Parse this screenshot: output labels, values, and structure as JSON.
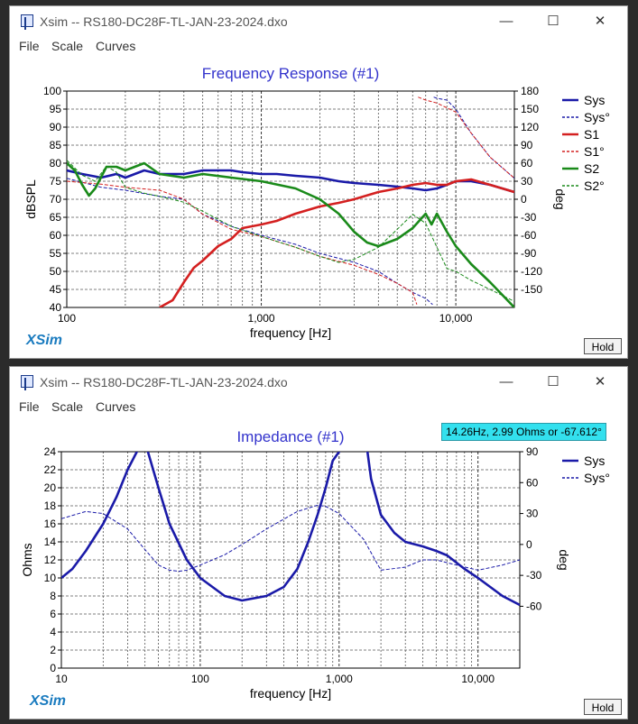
{
  "windows": [
    {
      "title": "Xsim -- RS180-DC28F-TL-JAN-23-2024.dxo",
      "menu": [
        "File",
        "Scale",
        "Curves"
      ],
      "hold": "Hold",
      "logo": "XSim"
    },
    {
      "title": "Xsim -- RS180-DC28F-TL-JAN-23-2024.dxo",
      "menu": [
        "File",
        "Scale",
        "Curves"
      ],
      "hold": "Hold",
      "logo": "XSim",
      "readout": "14.26Hz, 2.99 Ohms or -67.612°"
    }
  ],
  "window_controls": {
    "minimize": "—",
    "maximize": "☐",
    "close": "✕"
  },
  "colors": {
    "blue": "#1a1aa8",
    "red": "#d42020",
    "green": "#1a8a1a",
    "title": "#3333cc"
  },
  "chart_data": [
    {
      "type": "line",
      "title": "Frequency Response (#1)",
      "xlabel": "frequency [Hz]",
      "ylabel": "dBSPL",
      "y2label": "deg",
      "xscale": "log",
      "xlim": [
        100,
        20000
      ],
      "ylim": [
        40,
        100
      ],
      "y2lim": [
        -180,
        180
      ],
      "xticks": [
        {
          "v": 100,
          "l": "100"
        },
        {
          "v": 1000,
          "l": "1,000"
        },
        {
          "v": 10000,
          "l": "10,000"
        }
      ],
      "yticks": [
        40,
        45,
        50,
        55,
        60,
        65,
        70,
        75,
        80,
        85,
        90,
        95,
        100
      ],
      "y2ticks": [
        -150,
        -120,
        -90,
        -60,
        -30,
        0,
        30,
        60,
        90,
        120,
        150,
        180
      ],
      "grid": true,
      "legend": "right",
      "series": [
        {
          "name": "Sys",
          "axis": "left",
          "color": "#1a1aa8",
          "dash": false,
          "width": 2.6,
          "x": [
            100,
            120,
            150,
            180,
            200,
            250,
            300,
            400,
            500,
            600,
            700,
            800,
            1000,
            1200,
            1500,
            2000,
            2500,
            3000,
            4000,
            5000,
            6000,
            7000,
            8000,
            9000,
            10000,
            12000,
            15000,
            20000
          ],
          "y": [
            78,
            77,
            76,
            77,
            76,
            78,
            77,
            77,
            78,
            78,
            78,
            77.5,
            77,
            77,
            76.5,
            76,
            75,
            74.5,
            74,
            73.5,
            73,
            72.5,
            73,
            74,
            75,
            75,
            74,
            72
          ]
        },
        {
          "name": "Sys°",
          "axis": "right",
          "color": "#1a1aa8",
          "dash": true,
          "width": 1,
          "x": [
            100,
            150,
            200,
            300,
            400,
            500,
            700,
            1000,
            1500,
            2000,
            3000,
            4000,
            5000,
            6000,
            7000,
            7600,
            7700,
            8000,
            9000,
            10000,
            12000,
            15000,
            20000
          ],
          "y": [
            35,
            20,
            15,
            5,
            0,
            -25,
            -45,
            -60,
            -75,
            -90,
            -105,
            -120,
            -140,
            -155,
            -165,
            -175,
            170,
            168,
            165,
            150,
            110,
            70,
            35
          ]
        },
        {
          "name": "S1",
          "axis": "left",
          "color": "#d42020",
          "dash": false,
          "width": 2.6,
          "x": [
            300,
            350,
            400,
            450,
            500,
            600,
            700,
            800,
            1000,
            1200,
            1500,
            2000,
            2500,
            3000,
            4000,
            5000,
            6000,
            7000,
            8000,
            9000,
            10000,
            12000,
            15000,
            20000
          ],
          "y": [
            40,
            42,
            47,
            51,
            53,
            57,
            59,
            62,
            63,
            64,
            66,
            68,
            69,
            70,
            72,
            73,
            74,
            74.5,
            74,
            74,
            75,
            75.5,
            74,
            72
          ]
        },
        {
          "name": "S1°",
          "axis": "right",
          "color": "#d42020",
          "dash": true,
          "width": 1,
          "x": [
            100,
            150,
            200,
            300,
            400,
            500,
            700,
            1000,
            1500,
            2000,
            3000,
            4000,
            5000,
            6000,
            6300,
            6400,
            7000,
            8000,
            10000,
            12000,
            15000,
            20000
          ],
          "y": [
            30,
            25,
            20,
            15,
            0,
            -25,
            -50,
            -62,
            -80,
            -95,
            -110,
            -125,
            -140,
            -155,
            -175,
            170,
            165,
            160,
            145,
            110,
            70,
            35
          ]
        },
        {
          "name": "S2",
          "axis": "left",
          "color": "#1a8a1a",
          "dash": false,
          "width": 2.6,
          "x": [
            100,
            110,
            120,
            130,
            140,
            160,
            180,
            200,
            250,
            300,
            400,
            500,
            700,
            1000,
            1500,
            2000,
            2500,
            3000,
            3500,
            4000,
            5000,
            6000,
            7000,
            7500,
            8000,
            9000,
            10000,
            12000,
            15000,
            20000
          ],
          "y": [
            80,
            78,
            74,
            71,
            73,
            79,
            79,
            78,
            80,
            77,
            76,
            77,
            76,
            75,
            73,
            70,
            66,
            61,
            58,
            57,
            59,
            62,
            66,
            63,
            66,
            61,
            57,
            52,
            47,
            40
          ]
        },
        {
          "name": "S2°",
          "axis": "right",
          "color": "#1a8a1a",
          "dash": true,
          "width": 1,
          "x": [
            100,
            120,
            140,
            160,
            180,
            200,
            250,
            300,
            400,
            500,
            700,
            1000,
            1500,
            2000,
            2500,
            3000,
            4000,
            5000,
            6000,
            7000,
            8000,
            9000,
            10000,
            12000,
            15000,
            20000
          ],
          "y": [
            65,
            40,
            30,
            55,
            45,
            20,
            10,
            5,
            -5,
            -20,
            -45,
            -62,
            -80,
            -95,
            -105,
            -100,
            -80,
            -50,
            -25,
            -40,
            -80,
            -115,
            -120,
            -135,
            -150,
            -170
          ]
        }
      ]
    },
    {
      "type": "line",
      "title": "Impedance (#1)",
      "xlabel": "frequency [Hz]",
      "ylabel": "Ohms",
      "y2label": "deg",
      "xscale": "log",
      "xlim": [
        10,
        20000
      ],
      "ylim": [
        0,
        24
      ],
      "y2lim": [
        -120,
        90
      ],
      "xticks": [
        {
          "v": 10,
          "l": "10"
        },
        {
          "v": 100,
          "l": "100"
        },
        {
          "v": 1000,
          "l": "1,000"
        },
        {
          "v": 10000,
          "l": "10,000"
        }
      ],
      "yticks": [
        0,
        2,
        4,
        6,
        8,
        10,
        12,
        14,
        16,
        18,
        20,
        22,
        24
      ],
      "y2ticks": [
        -60,
        -30,
        0,
        30,
        60,
        90
      ],
      "grid": true,
      "legend": "right",
      "series": [
        {
          "name": "Sys",
          "axis": "left",
          "color": "#1a1aa8",
          "dash": false,
          "width": 2.6,
          "x": [
            10,
            12,
            15,
            20,
            25,
            30,
            35,
            38,
            42,
            50,
            60,
            80,
            100,
            150,
            200,
            300,
            400,
            500,
            600,
            700,
            800,
            900,
            1000,
            1050,
            1600,
            1700,
            2000,
            2500,
            3000,
            4000,
            5000,
            6000,
            8000,
            10000,
            15000,
            20000
          ],
          "y": [
            10,
            11,
            13,
            16,
            19,
            22,
            24,
            26,
            24,
            20,
            16,
            12,
            10,
            8,
            7.5,
            8,
            9,
            11,
            14,
            17,
            20,
            23,
            24,
            26,
            24,
            21,
            17,
            15,
            14,
            13.5,
            13,
            12.5,
            11,
            10,
            8,
            7
          ]
        },
        {
          "name": "Sys°",
          "axis": "right",
          "color": "#1a1aa8",
          "dash": true,
          "width": 1,
          "x": [
            10,
            15,
            20,
            30,
            40,
            50,
            60,
            70,
            80,
            100,
            150,
            200,
            300,
            500,
            700,
            800,
            1000,
            1500,
            2000,
            3000,
            4000,
            5000,
            7000,
            10000,
            15000,
            20000
          ],
          "y": [
            25,
            32,
            30,
            15,
            -5,
            -20,
            -25,
            -26,
            -25,
            -20,
            -10,
            0,
            15,
            32,
            38,
            37,
            30,
            5,
            -25,
            -22,
            -15,
            -15,
            -20,
            -25,
            -20,
            -15
          ]
        }
      ]
    }
  ]
}
